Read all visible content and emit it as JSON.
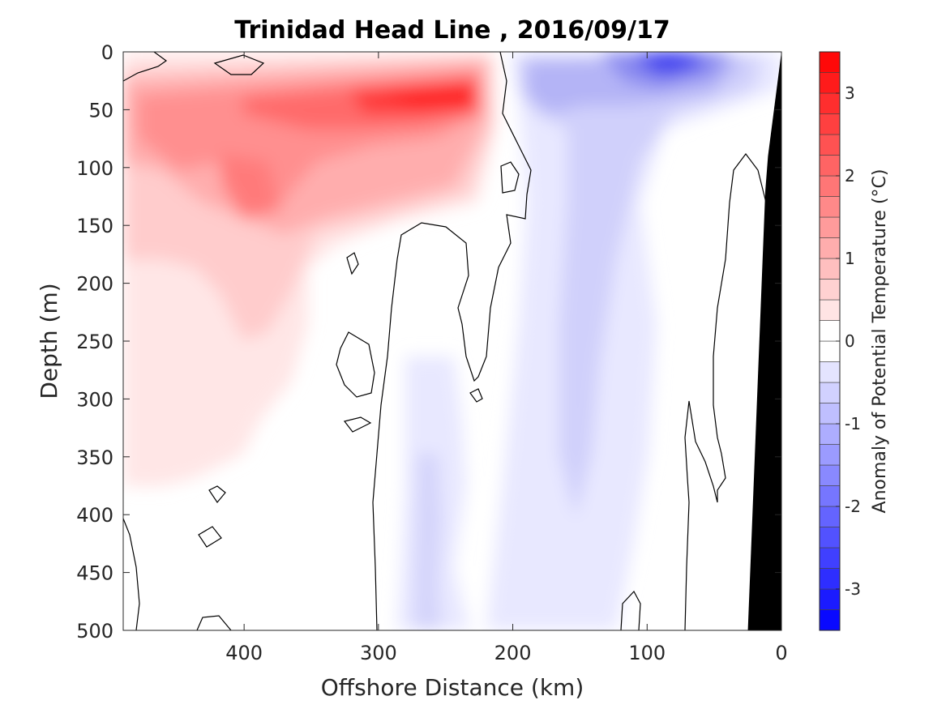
{
  "chart_data": {
    "type": "heatmap",
    "title": "Trinidad Head Line , 2016/09/17",
    "xlabel": "Offshore Distance (km)",
    "ylabel": "Depth (m)",
    "colorbar_label": "Anomaly of Potential Temperature (°C)",
    "xlim": [
      490,
      0
    ],
    "ylim": [
      0,
      500
    ],
    "y_reversed": true,
    "x_reversed": true,
    "xticks": [
      400,
      300,
      200,
      100,
      0
    ],
    "yticks": [
      0,
      50,
      100,
      150,
      200,
      250,
      300,
      350,
      400,
      450,
      500
    ],
    "cbar_range": [
      -3.5,
      3.5
    ],
    "cbar_step": 0.25,
    "cbar_ticks": [
      3,
      2,
      1,
      0,
      -1,
      -2,
      -3
    ],
    "colormap": {
      "negative": "#0000ff",
      "zero": "#ffffff",
      "positive": "#ff0000"
    },
    "zero_contour_color": "#000000",
    "bathymetry_color": "#000000",
    "bathymetry": [
      [
        25,
        500
      ],
      [
        12,
        120
      ],
      [
        10,
        90
      ],
      [
        0,
        0
      ]
    ],
    "features": [
      {
        "kind": "warm_core",
        "x": 400,
        "y": 120,
        "anomaly": 2.3
      },
      {
        "kind": "warm_core",
        "x": 370,
        "y": 50,
        "anomaly": 2.5
      },
      {
        "kind": "warm_core",
        "x": 310,
        "y": 40,
        "anomaly": 2.8
      },
      {
        "kind": "warm_core",
        "x": 250,
        "y": 40,
        "anomaly": 3.0
      },
      {
        "kind": "cold_core",
        "x": 85,
        "y": 5,
        "anomaly": -2.5
      },
      {
        "kind": "cold_band",
        "x": 150,
        "y": 250,
        "anomaly": -0.8
      },
      {
        "kind": "cold_band",
        "x": 270,
        "y": 400,
        "anomaly": -0.6
      }
    ]
  }
}
